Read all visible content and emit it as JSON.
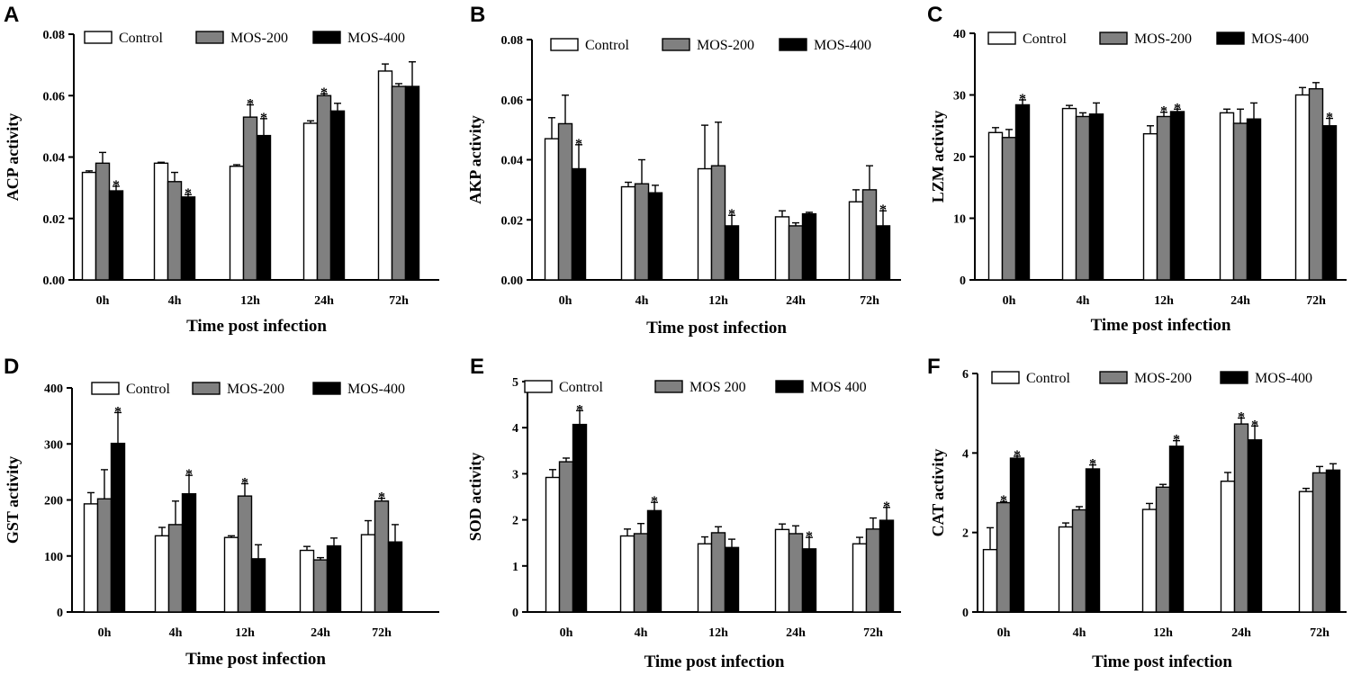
{
  "figure": {
    "legend_colors": [
      "#ffffff",
      "#808080",
      "#000000"
    ]
  },
  "chart_data": [
    {
      "panel": "A",
      "type": "bar",
      "title": "",
      "xlabel": "Time post infection",
      "ylabel": "ACP activity",
      "categories": [
        "0h",
        "4h",
        "12h",
        "24h",
        "72h"
      ],
      "ylim": [
        0,
        0.08
      ],
      "yticks": [
        "0.00",
        "0.02",
        "0.04",
        "0.06",
        "0.08"
      ],
      "ytick_step": 0.02,
      "legend": [
        "Control",
        "MOS-200",
        "MOS-400"
      ],
      "legend_placement": "top",
      "series": [
        {
          "name": "Control",
          "values": [
            0.035,
            0.038,
            0.037,
            0.051,
            0.068
          ],
          "errors": [
            0.0005,
            0.0003,
            0.0005,
            0.0008,
            0.0023
          ],
          "significance": [
            "",
            "",
            "",
            "",
            ""
          ]
        },
        {
          "name": "MOS-200",
          "values": [
            0.038,
            0.032,
            0.053,
            0.06,
            0.063
          ],
          "errors": [
            0.0035,
            0.003,
            0.004,
            0.0006,
            0.0009
          ],
          "significance": [
            "",
            "",
            "*",
            "*",
            ""
          ]
        },
        {
          "name": "MOS-400",
          "values": [
            0.029,
            0.027,
            0.047,
            0.055,
            0.063
          ],
          "errors": [
            0.0015,
            0.0008,
            0.0055,
            0.0025,
            0.008
          ],
          "significance": [
            "*",
            "*",
            "*",
            "",
            ""
          ]
        }
      ]
    },
    {
      "panel": "B",
      "type": "bar",
      "title": "",
      "xlabel": "Time post infection",
      "ylabel": "AKP activity",
      "categories": [
        "0h",
        "4h",
        "12h",
        "24h",
        "72h"
      ],
      "ylim": [
        0,
        0.08
      ],
      "yticks": [
        "0.00",
        "0.02",
        "0.04",
        "0.06",
        "0.08"
      ],
      "ytick_step": 0.02,
      "legend": [
        "Control",
        "MOS-200",
        "MOS-400"
      ],
      "legend_placement": "top",
      "series": [
        {
          "name": "Control",
          "values": [
            0.047,
            0.031,
            0.037,
            0.021,
            0.026
          ],
          "errors": [
            0.007,
            0.0015,
            0.0145,
            0.002,
            0.004
          ],
          "significance": [
            "",
            "",
            "",
            "",
            ""
          ]
        },
        {
          "name": "MOS-200",
          "values": [
            0.052,
            0.032,
            0.038,
            0.018,
            0.03
          ],
          "errors": [
            0.0095,
            0.008,
            0.0145,
            0.001,
            0.008
          ],
          "significance": [
            "",
            "",
            "",
            "",
            ""
          ]
        },
        {
          "name": "MOS-400",
          "values": [
            0.037,
            0.029,
            0.018,
            0.022,
            0.018
          ],
          "errors": [
            0.008,
            0.0025,
            0.0035,
            0.0005,
            0.005
          ],
          "significance": [
            "*",
            "",
            "*",
            "",
            "*"
          ]
        }
      ]
    },
    {
      "panel": "C",
      "type": "bar",
      "title": "",
      "xlabel": "Time post infection",
      "ylabel": "LZM activity",
      "categories": [
        "0h",
        "4h",
        "12h",
        "24h",
        "72h"
      ],
      "ylim": [
        0,
        40
      ],
      "yticks": [
        "0",
        "10",
        "20",
        "30",
        "40"
      ],
      "ytick_step": 10,
      "legend": [
        "Control",
        "MOS-200",
        "MOS-400"
      ],
      "legend_placement": "top",
      "series": [
        {
          "name": "Control",
          "values": [
            23.9,
            27.8,
            23.7,
            27.1,
            30.0
          ],
          "errors": [
            0.8,
            0.5,
            1.3,
            0.6,
            1.2
          ],
          "significance": [
            "",
            "",
            "",
            "",
            ""
          ]
        },
        {
          "name": "MOS-200",
          "values": [
            23.1,
            26.5,
            26.5,
            25.4,
            31.0
          ],
          "errors": [
            1.3,
            0.6,
            0.7,
            2.3,
            1.0
          ],
          "significance": [
            "",
            "",
            "*",
            "",
            ""
          ]
        },
        {
          "name": "MOS-400",
          "values": [
            28.4,
            26.9,
            27.3,
            26.1,
            25.0
          ],
          "errors": [
            0.8,
            1.8,
            0.4,
            2.6,
            1.2
          ],
          "significance": [
            "*",
            "",
            "*",
            "",
            "*"
          ]
        }
      ]
    },
    {
      "panel": "D",
      "type": "bar",
      "title": "",
      "xlabel": "Time post infection",
      "ylabel": "GST activity",
      "categories": [
        "0h",
        "4h",
        "12h",
        "24h",
        "72h"
      ],
      "ylim": [
        0,
        400
      ],
      "yticks": [
        "0",
        "100",
        "200",
        "300",
        "400"
      ],
      "ytick_step": 100,
      "legend": [
        "Control",
        "MOS-200",
        "MOS-400"
      ],
      "legend_placement": "top",
      "series": [
        {
          "name": "Control",
          "values": [
            193,
            136,
            133,
            110,
            138
          ],
          "errors": [
            20,
            15,
            3,
            7,
            25
          ],
          "significance": [
            "",
            "",
            "",
            "",
            ""
          ]
        },
        {
          "name": "MOS-200",
          "values": [
            202,
            156,
            207,
            93,
            198
          ],
          "errors": [
            52,
            42,
            22,
            4,
            5
          ],
          "significance": [
            "",
            "",
            "*",
            "",
            "*"
          ]
        },
        {
          "name": "MOS-400",
          "values": [
            301,
            211,
            95,
            118,
            125
          ],
          "errors": [
            55,
            33,
            25,
            14,
            31
          ],
          "significance": [
            "*",
            "*",
            "",
            "",
            ""
          ]
        }
      ]
    },
    {
      "panel": "E",
      "type": "bar",
      "title": "",
      "xlabel": "Time post infection",
      "ylabel": "SOD activity",
      "categories": [
        "0h",
        "4h",
        "12h",
        "24h",
        "72h"
      ],
      "ylim": [
        0,
        5
      ],
      "yticks": [
        "0",
        "1",
        "2",
        "3",
        "4",
        "5"
      ],
      "ytick_step": 1,
      "legend": [
        "Control",
        "MOS 200",
        "MOS 400"
      ],
      "legend_placement": "top",
      "series": [
        {
          "name": "Control",
          "values": [
            2.92,
            1.65,
            1.48,
            1.79,
            1.48
          ],
          "errors": [
            0.17,
            0.15,
            0.15,
            0.12,
            0.14
          ],
          "significance": [
            "",
            "",
            "",
            "",
            ""
          ]
        },
        {
          "name": "MOS 200",
          "values": [
            3.26,
            1.7,
            1.72,
            1.7,
            1.8
          ],
          "errors": [
            0.08,
            0.22,
            0.13,
            0.17,
            0.24
          ],
          "significance": [
            "",
            "",
            "",
            "",
            ""
          ]
        },
        {
          "name": "MOS 400",
          "values": [
            4.07,
            2.2,
            1.4,
            1.37,
            1.99
          ],
          "errors": [
            0.3,
            0.18,
            0.18,
            0.25,
            0.28
          ],
          "significance": [
            "*",
            "*",
            "",
            "*",
            "*"
          ]
        }
      ]
    },
    {
      "panel": "F",
      "type": "bar",
      "title": "",
      "xlabel": "Time post infection",
      "ylabel": "CAT activity",
      "categories": [
        "0h",
        "4h",
        "12h",
        "24h",
        "72h"
      ],
      "ylim": [
        0,
        6
      ],
      "yticks": [
        "0",
        "2",
        "4",
        "6"
      ],
      "ytick_step": 2,
      "legend": [
        "Control",
        "MOS-200",
        "MOS-400"
      ],
      "legend_placement": "top",
      "series": [
        {
          "name": "Control",
          "values": [
            1.57,
            2.14,
            2.58,
            3.29,
            3.03
          ],
          "errors": [
            0.55,
            0.1,
            0.15,
            0.22,
            0.08
          ],
          "significance": [
            "",
            "",
            "",
            "",
            ""
          ]
        },
        {
          "name": "MOS-200",
          "values": [
            2.75,
            2.57,
            3.14,
            4.73,
            3.5
          ],
          "errors": [
            0.03,
            0.08,
            0.07,
            0.15,
            0.16
          ],
          "significance": [
            "*",
            "",
            "",
            "*",
            ""
          ]
        },
        {
          "name": "MOS-400",
          "values": [
            3.87,
            3.6,
            4.17,
            4.33,
            3.57
          ],
          "errors": [
            0.05,
            0.1,
            0.14,
            0.35,
            0.16
          ],
          "significance": [
            "*",
            "*",
            "*",
            "*",
            ""
          ]
        }
      ]
    }
  ]
}
